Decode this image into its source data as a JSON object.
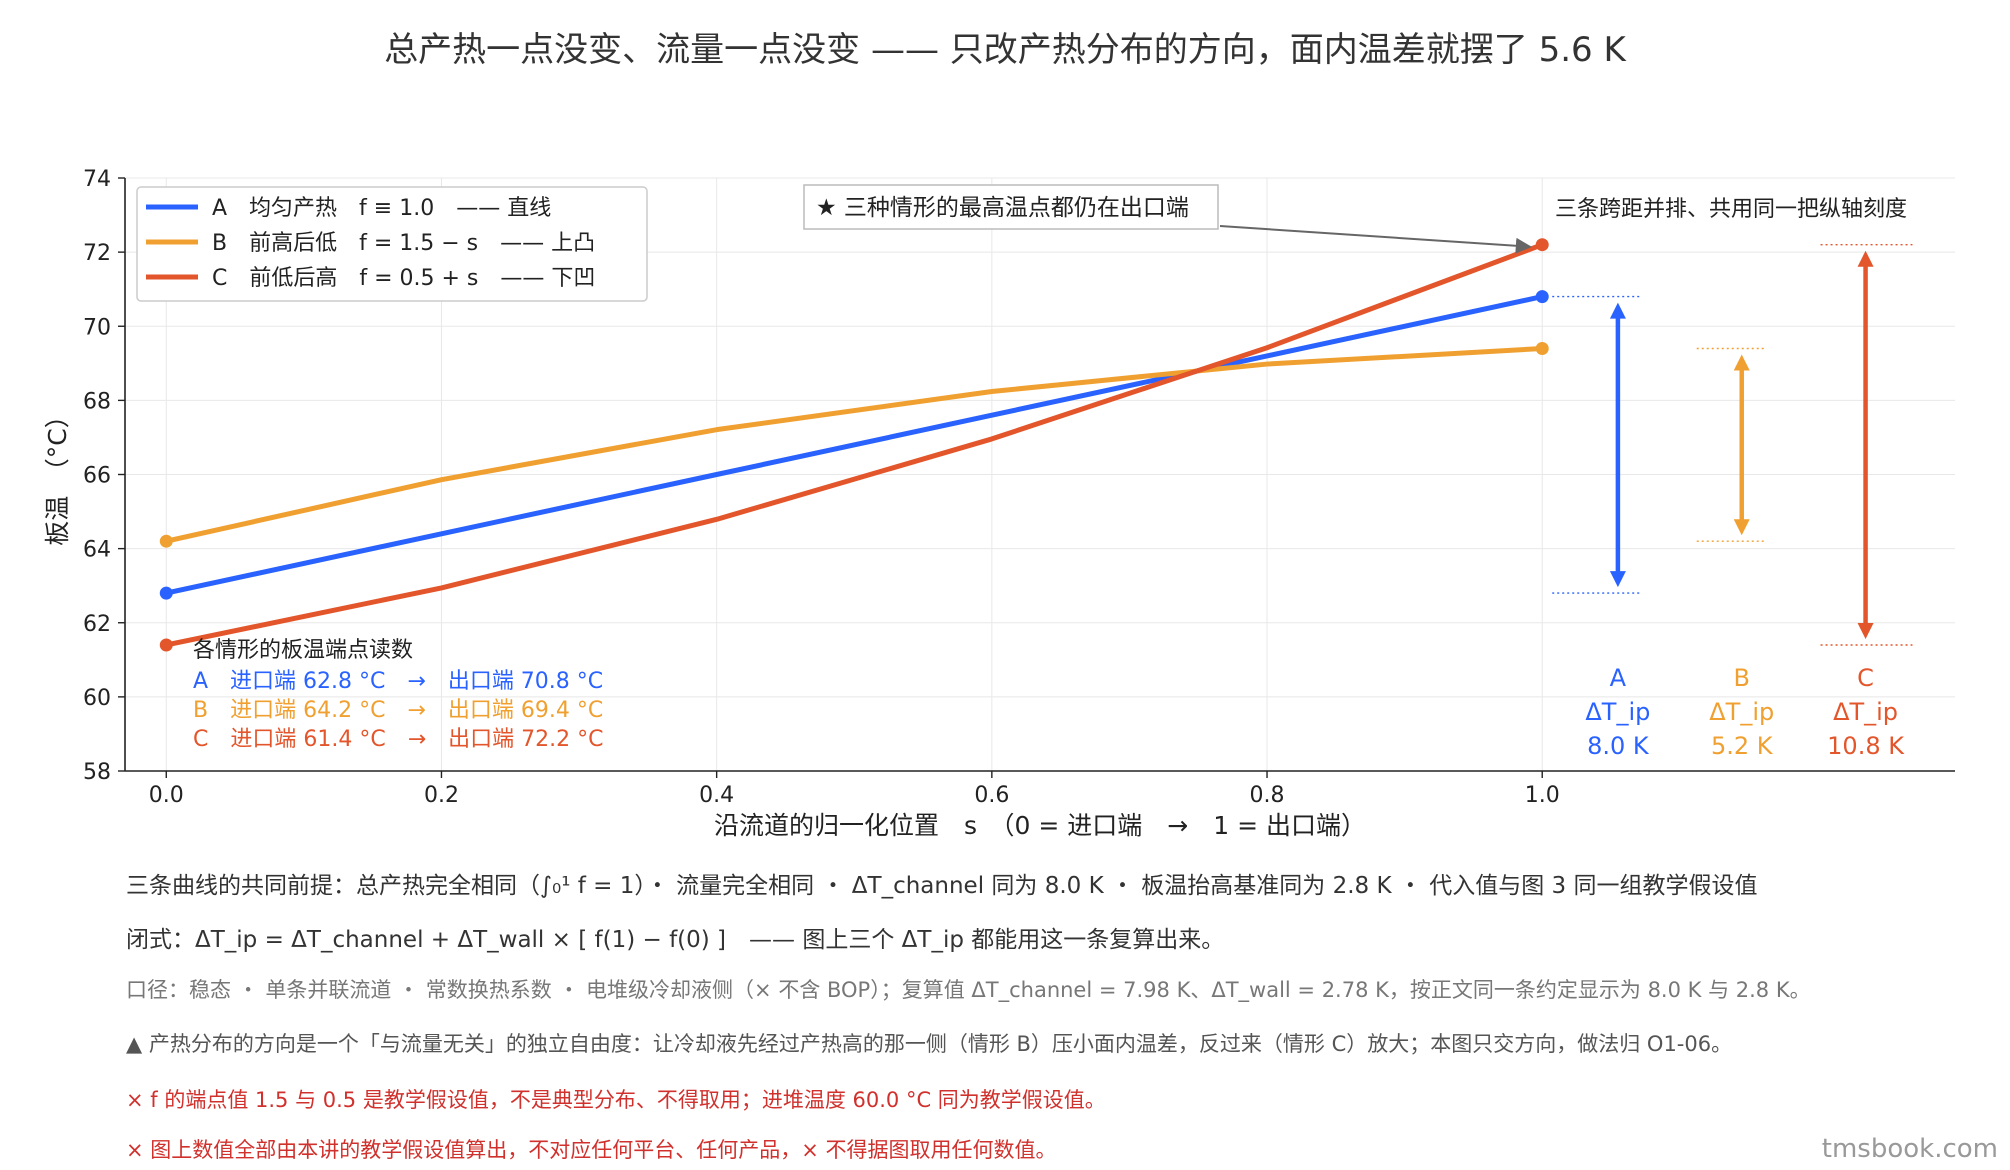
{
  "title": "总产热一点没变、流量一点没变 —— 只改产热分布的方向，面内温差就摆了 5.6 K",
  "colors": {
    "A": "#2962ff",
    "B": "#f0a030",
    "C": "#e3562b",
    "axis": "#222222",
    "grid": "#e8e8e8"
  },
  "chart_data": {
    "type": "line",
    "xlabel": "沿流道的归一化位置　s　（0 = 进口端　→　1 = 出口端）",
    "ylabel": "板温　（°C）",
    "xlim": [
      -0.03,
      1.3
    ],
    "ylim": [
      58,
      74
    ],
    "x_ticks": [
      0.0,
      0.2,
      0.4,
      0.6,
      0.8,
      1.0
    ],
    "x_tick_labels": [
      "0.0",
      "0.2",
      "0.4",
      "0.6",
      "0.8",
      "1.0"
    ],
    "y_ticks": [
      58,
      60,
      62,
      64,
      66,
      68,
      70,
      72,
      74
    ],
    "grid": true,
    "legend_position": "top-left",
    "series": [
      {
        "key": "A",
        "name": "A　均匀产热　f ≡ 1.0　—— 直线",
        "x": [
          0.0,
          0.2,
          0.4,
          0.6,
          0.8,
          1.0
        ],
        "y": [
          62.8,
          64.4,
          66.0,
          67.6,
          69.2,
          70.8
        ]
      },
      {
        "key": "B",
        "name": "B　前高后低　f = 1.5 − s　—— 上凸",
        "x": [
          0.0,
          0.2,
          0.4,
          0.6,
          0.8,
          1.0
        ],
        "y": [
          64.2,
          65.86,
          67.21,
          68.24,
          68.98,
          69.4
        ]
      },
      {
        "key": "C",
        "name": "C　前低后高　f = 0.5 + s　—— 下凹",
        "x": [
          0.0,
          0.2,
          0.4,
          0.6,
          0.8,
          1.0
        ],
        "y": [
          61.4,
          62.94,
          64.79,
          66.96,
          69.42,
          72.2
        ]
      }
    ],
    "annotation_star": "★ 三种情形的最高温点都仍在出口端",
    "span_note": "三条跨距并排、共用同一把纵轴刻度",
    "spans": [
      {
        "key": "A",
        "label": "A",
        "sub": "ΔT_ip",
        "value_text": "8.0 K",
        "low": 62.8,
        "high": 70.8
      },
      {
        "key": "B",
        "label": "B",
        "sub": "ΔT_ip",
        "value_text": "5.2 K",
        "low": 64.2,
        "high": 69.4
      },
      {
        "key": "C",
        "label": "C",
        "sub": "ΔT_ip",
        "value_text": "10.8 K",
        "low": 61.4,
        "high": 72.2
      }
    ],
    "readout_title": "各情形的板温端点读数",
    "readouts": [
      {
        "key": "A",
        "text": "A　进口端 62.8 °C　→　出口端 70.8 °C"
      },
      {
        "key": "B",
        "text": "B　进口端 64.2 °C　→　出口端 69.4 °C"
      },
      {
        "key": "C",
        "text": "C　进口端 61.4 °C　→　出口端 72.2 °C"
      }
    ]
  },
  "notes": {
    "premise": "三条曲线的共同前提：总产热完全相同（∫₀¹ f = 1）・ 流量完全相同 ・ ΔT_channel 同为 8.0 K ・ 板温抬高基准同为 2.8 K ・ 代入值与图 3 同一组教学假设值",
    "formula": "闭式：ΔT_ip = ΔT_channel + ΔT_wall × [ f(1) − f(0) ]　—— 图上三个 ΔT_ip 都能用这一条复算出来。",
    "scope": "口径：稳态 ・ 单条并联流道 ・ 常数换热系数 ・ 电堆级冷却液侧（× 不含 BOP）；复算值 ΔT_channel = 7.98 K、ΔT_wall = 2.78 K，按正文同一条约定显示为 8.0 K 与 2.8 K。",
    "insight": "▲ 产热分布的方向是一个「与流量无关」的独立自由度：让冷却液先经过产热高的那一侧（情形 B）压小面内温差，反过来（情形 C）放大；本图只交方向，做法归 O1-06。",
    "warn1": "× f 的端点值 1.5 与 0.5 是教学假设值，不是典型分布、不得取用；进堆温度 60.0 °C 同为教学假设值。",
    "warn2": "× 图上数值全部由本讲的教学假设值算出，不对应任何平台、任何产品，× 不得据图取用任何数值。"
  },
  "watermark": "tmsbook.com"
}
